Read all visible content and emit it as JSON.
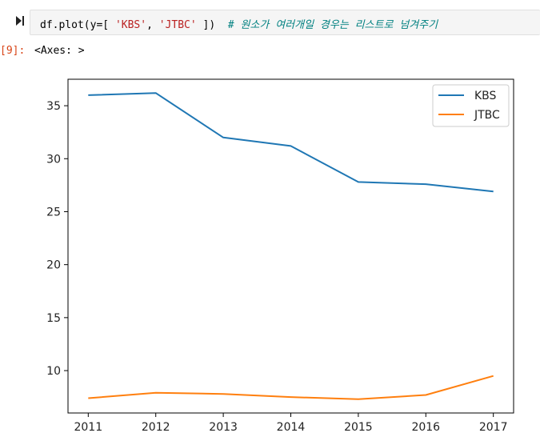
{
  "input_cell": {
    "code": {
      "prefix": "df.plot(y=",
      "bracket_open": "[",
      "str1": "'KBS'",
      "comma": ",",
      "str2": "'JTBC'",
      "bracket_close": "])",
      "comment": "# 원소가 여러개일 경우는 리스트로 넘겨주기"
    }
  },
  "output_cell": {
    "prompt": "[9]:",
    "text": "<Axes: >"
  },
  "colors": {
    "series_kbs": "#1f77b4",
    "series_jtbc": "#ff7f0e",
    "prompt_out": "#d84315"
  },
  "chart_data": {
    "type": "line",
    "x": [
      2011,
      2012,
      2013,
      2014,
      2015,
      2016,
      2017
    ],
    "series": [
      {
        "name": "KBS",
        "values": [
          36.0,
          36.2,
          32.0,
          31.2,
          27.8,
          27.6,
          26.9
        ]
      },
      {
        "name": "JTBC",
        "values": [
          7.4,
          7.9,
          7.8,
          7.5,
          7.3,
          7.7,
          9.5
        ]
      }
    ],
    "yticks": [
      10,
      15,
      20,
      25,
      30,
      35
    ],
    "xticks": [
      2011,
      2012,
      2013,
      2014,
      2015,
      2016,
      2017
    ],
    "ylim": [
      6.0,
      37.5
    ],
    "xlim": [
      2010.7,
      2017.3
    ],
    "legend_position": "upper right",
    "title": "",
    "xlabel": "",
    "ylabel": ""
  }
}
